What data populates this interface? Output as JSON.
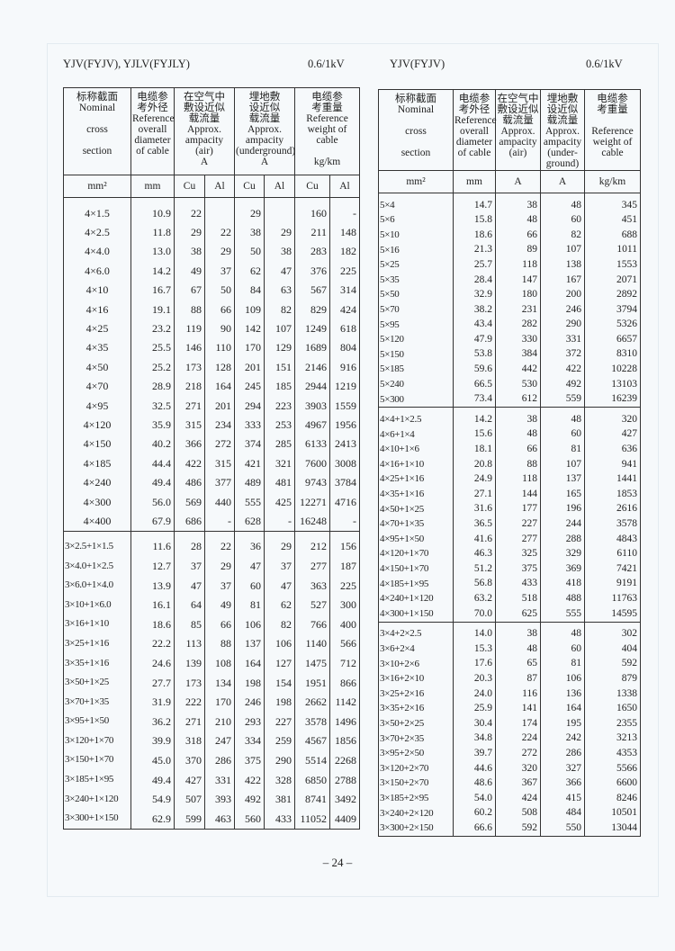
{
  "left": {
    "title": "YJV(FYJV), YJLV(FYJLY)",
    "voltage": "0.6/1kV",
    "headers": {
      "nominal": "标称截面\nNominal\n\ncross\n\nsection",
      "diameter": "电缆参\n考外径\nReference\noverall\ndiameter\nof cable",
      "air": "在空气中\n敷设近似\n载流量\nApprox.\nampacity\n(air)\nA",
      "underground": "埋地敷\n设近似\n载流量\nApprox.\nampacity\n(underground)\nA",
      "weight": "电缆参\n考重量\nReference\nweight of\ncable\n\nkg/km"
    },
    "units": [
      "mm²",
      "mm",
      "Cu",
      "Al",
      "Cu",
      "Al",
      "Cu",
      "Al"
    ],
    "groups": [
      [
        [
          "4×1.5",
          "10.9",
          "22",
          "",
          "29",
          "",
          "160",
          "-"
        ],
        [
          "4×2.5",
          "11.8",
          "29",
          "22",
          "38",
          "29",
          "211",
          "148"
        ],
        [
          "4×4.0",
          "13.0",
          "38",
          "29",
          "50",
          "38",
          "283",
          "182"
        ],
        [
          "4×6.0",
          "14.2",
          "49",
          "37",
          "62",
          "47",
          "376",
          "225"
        ],
        [
          "4×10",
          "16.7",
          "67",
          "50",
          "84",
          "63",
          "567",
          "314"
        ],
        [
          "4×16",
          "19.1",
          "88",
          "66",
          "109",
          "82",
          "829",
          "424"
        ],
        [
          "4×25",
          "23.2",
          "119",
          "90",
          "142",
          "107",
          "1249",
          "618"
        ],
        [
          "4×35",
          "25.5",
          "146",
          "110",
          "170",
          "129",
          "1689",
          "804"
        ],
        [
          "4×50",
          "25.2",
          "173",
          "128",
          "201",
          "151",
          "2146",
          "916"
        ],
        [
          "4×70",
          "28.9",
          "218",
          "164",
          "245",
          "185",
          "2944",
          "1219"
        ],
        [
          "4×95",
          "32.5",
          "271",
          "201",
          "294",
          "223",
          "3903",
          "1559"
        ],
        [
          "4×120",
          "35.9",
          "315",
          "234",
          "333",
          "253",
          "4967",
          "1956"
        ],
        [
          "4×150",
          "40.2",
          "366",
          "272",
          "374",
          "285",
          "6133",
          "2413"
        ],
        [
          "4×185",
          "44.4",
          "422",
          "315",
          "421",
          "321",
          "7600",
          "3008"
        ],
        [
          "4×240",
          "49.4",
          "486",
          "377",
          "489",
          "481",
          "9743",
          "3784"
        ],
        [
          "4×300",
          "56.0",
          "569",
          "440",
          "555",
          "425",
          "12271",
          "4716"
        ],
        [
          "4×400",
          "67.9",
          "686",
          "-",
          "628",
          "-",
          "16248",
          "-"
        ]
      ],
      [
        [
          "3×2.5+1×1.5",
          "11.6",
          "28",
          "22",
          "36",
          "29",
          "212",
          "156"
        ],
        [
          "3×4.0+1×2.5",
          "12.7",
          "37",
          "29",
          "47",
          "37",
          "277",
          "187"
        ],
        [
          "3×6.0+1×4.0",
          "13.9",
          "47",
          "37",
          "60",
          "47",
          "363",
          "225"
        ],
        [
          "3×10+1×6.0",
          "16.1",
          "64",
          "49",
          "81",
          "62",
          "527",
          "300"
        ],
        [
          "3×16+1×10",
          "18.6",
          "85",
          "66",
          "106",
          "82",
          "766",
          "400"
        ],
        [
          "3×25+1×16",
          "22.2",
          "113",
          "88",
          "137",
          "106",
          "1140",
          "566"
        ],
        [
          "3×35+1×16",
          "24.6",
          "139",
          "108",
          "164",
          "127",
          "1475",
          "712"
        ],
        [
          "3×50+1×25",
          "27.7",
          "173",
          "134",
          "198",
          "154",
          "1951",
          "866"
        ],
        [
          "3×70+1×35",
          "31.9",
          "222",
          "170",
          "246",
          "198",
          "2662",
          "1142"
        ],
        [
          "3×95+1×50",
          "36.2",
          "271",
          "210",
          "293",
          "227",
          "3578",
          "1496"
        ],
        [
          "3×120+1×70",
          "39.9",
          "318",
          "247",
          "334",
          "259",
          "4567",
          "1856"
        ],
        [
          "3×150+1×70",
          "45.0",
          "370",
          "286",
          "375",
          "290",
          "5514",
          "2268"
        ],
        [
          "3×185+1×95",
          "49.4",
          "427",
          "331",
          "422",
          "328",
          "6850",
          "2788"
        ],
        [
          "3×240+1×120",
          "54.9",
          "507",
          "393",
          "492",
          "381",
          "8741",
          "3492"
        ],
        [
          "3×300+1×150",
          "62.9",
          "599",
          "463",
          "560",
          "433",
          "11052",
          "4409"
        ]
      ]
    ]
  },
  "right": {
    "title": "YJV(FYJV)",
    "voltage": "0.6/1kV",
    "headers": {
      "nominal": "标称截面\nNominal\n\ncross\n\nsection",
      "diameter": "电缆参\n考外径\nReference\noverall\ndiameter\nof cable",
      "air": "在空气中\n敷设近似\n载流量\nApprox.\nampacity\n(air)",
      "underground": "埋地敷\n设近似\n载流量\nApprox.\nampacity\n(under-\nground)",
      "weight": "电缆参\n考重量\n\nReference\nweight of\ncable"
    },
    "units": [
      "mm²",
      "mm",
      "A",
      "A",
      "kg/km"
    ],
    "groups": [
      [
        [
          "5×4",
          "14.7",
          "38",
          "48",
          "345"
        ],
        [
          "5×6",
          "15.8",
          "48",
          "60",
          "451"
        ],
        [
          "5×10",
          "18.6",
          "66",
          "82",
          "688"
        ],
        [
          "5×16",
          "21.3",
          "89",
          "107",
          "1011"
        ],
        [
          "5×25",
          "25.7",
          "118",
          "138",
          "1553"
        ],
        [
          "5×35",
          "28.4",
          "147",
          "167",
          "2071"
        ],
        [
          "5×50",
          "32.9",
          "180",
          "200",
          "2892"
        ],
        [
          "5×70",
          "38.2",
          "231",
          "246",
          "3794"
        ],
        [
          "5×95",
          "43.4",
          "282",
          "290",
          "5326"
        ],
        [
          "5×120",
          "47.9",
          "330",
          "331",
          "6657"
        ],
        [
          "5×150",
          "53.8",
          "384",
          "372",
          "8310"
        ],
        [
          "5×185",
          "59.6",
          "442",
          "422",
          "10228"
        ],
        [
          "5×240",
          "66.5",
          "530",
          "492",
          "13103"
        ],
        [
          "5×300",
          "73.4",
          "612",
          "559",
          "16239"
        ]
      ],
      [
        [
          "4×4+1×2.5",
          "14.2",
          "38",
          "48",
          "320"
        ],
        [
          "4×6+1×4",
          "15.6",
          "48",
          "60",
          "427"
        ],
        [
          "4×10+1×6",
          "18.1",
          "66",
          "81",
          "636"
        ],
        [
          "4×16+1×10",
          "20.8",
          "88",
          "107",
          "941"
        ],
        [
          "4×25+1×16",
          "24.9",
          "118",
          "137",
          "1441"
        ],
        [
          "4×35+1×16",
          "27.1",
          "144",
          "165",
          "1853"
        ],
        [
          "4×50+1×25",
          "31.6",
          "177",
          "196",
          "2616"
        ],
        [
          "4×70+1×35",
          "36.5",
          "227",
          "244",
          "3578"
        ],
        [
          "4×95+1×50",
          "41.6",
          "277",
          "288",
          "4843"
        ],
        [
          "4×120+1×70",
          "46.3",
          "325",
          "329",
          "6110"
        ],
        [
          "4×150+1×70",
          "51.2",
          "375",
          "369",
          "7421"
        ],
        [
          "4×185+1×95",
          "56.8",
          "433",
          "418",
          "9191"
        ],
        [
          "4×240+1×120",
          "63.2",
          "518",
          "488",
          "11763"
        ],
        [
          "4×300+1×150",
          "70.0",
          "625",
          "555",
          "14595"
        ]
      ],
      [
        [
          "3×4+2×2.5",
          "14.0",
          "38",
          "48",
          "302"
        ],
        [
          "3×6+2×4",
          "15.3",
          "48",
          "60",
          "404"
        ],
        [
          "3×10+2×6",
          "17.6",
          "65",
          "81",
          "592"
        ],
        [
          "3×16+2×10",
          "20.3",
          "87",
          "106",
          "879"
        ],
        [
          "3×25+2×16",
          "24.0",
          "116",
          "136",
          "1338"
        ],
        [
          "3×35+2×16",
          "25.9",
          "141",
          "164",
          "1650"
        ],
        [
          "3×50+2×25",
          "30.4",
          "174",
          "195",
          "2355"
        ],
        [
          "3×70+2×35",
          "34.8",
          "224",
          "242",
          "3213"
        ],
        [
          "3×95+2×50",
          "39.7",
          "272",
          "286",
          "4353"
        ],
        [
          "3×120+2×70",
          "44.6",
          "320",
          "327",
          "5566"
        ],
        [
          "3×150+2×70",
          "48.6",
          "367",
          "366",
          "6600"
        ],
        [
          "3×185+2×95",
          "54.0",
          "424",
          "415",
          "8246"
        ],
        [
          "3×240+2×120",
          "60.2",
          "508",
          "484",
          "10501"
        ],
        [
          "3×300+2×150",
          "66.6",
          "592",
          "550",
          "13044"
        ]
      ]
    ]
  },
  "page_number": "– 24 –"
}
